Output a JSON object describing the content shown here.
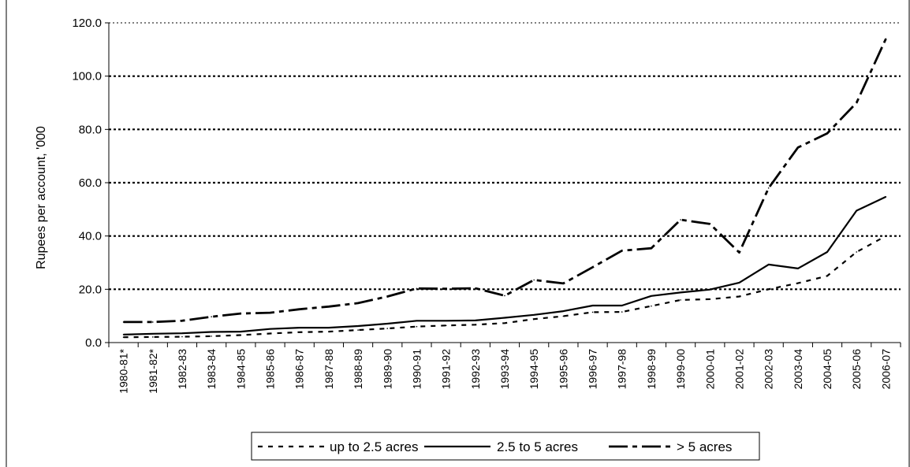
{
  "chart_data": {
    "type": "line",
    "title": "",
    "xlabel": "",
    "ylabel": "Rupees per account, '000",
    "ylim": [
      0,
      120
    ],
    "yticks": [
      "0.0",
      "20.0",
      "40.0",
      "60.0",
      "80.0",
      "100.0",
      "120.0"
    ],
    "grid": "horizontal dotted",
    "legend_position": "bottom",
    "categories": [
      "1980-81*",
      "1981-82*",
      "1982-83",
      "1983-84",
      "1984-85",
      "1985-86",
      "1986-87",
      "1987-88",
      "1988-89",
      "1989-90",
      "1990-91",
      "1991-92",
      "1992-93",
      "1993-94",
      "1994-95",
      "1995-96",
      "1996-97",
      "1997-98",
      "1998-99",
      "1999-00",
      "2000-01",
      "2001-02",
      "2002-03",
      "2003-04",
      "2004-05",
      "2005-06",
      "2006-07"
    ],
    "series": [
      {
        "name": "up to 2.5 acres",
        "dash": "short",
        "values": [
          2.0,
          2.1,
          2.2,
          2.4,
          2.8,
          3.4,
          3.9,
          4.1,
          4.7,
          5.3,
          6.0,
          6.4,
          6.7,
          7.3,
          8.8,
          9.9,
          11.4,
          11.5,
          13.7,
          16.0,
          16.3,
          17.3,
          20.0,
          22.3,
          25.0,
          34.0,
          40.0
        ]
      },
      {
        "name": "2.5 to 5 acres",
        "dash": "solid",
        "values": [
          3.0,
          3.3,
          3.5,
          4.0,
          4.1,
          5.1,
          5.6,
          5.6,
          6.2,
          7.1,
          8.2,
          8.2,
          8.3,
          9.3,
          10.4,
          11.8,
          13.9,
          13.9,
          17.5,
          18.8,
          19.9,
          22.5,
          29.3,
          27.8,
          34.0,
          49.5,
          54.7
        ]
      },
      {
        "name": "> 5 acres",
        "dash": "long",
        "values": [
          7.7,
          7.7,
          8.2,
          9.7,
          10.9,
          11.2,
          12.5,
          13.5,
          14.8,
          17.3,
          20.3,
          20.2,
          20.4,
          17.6,
          23.5,
          22.2,
          28.3,
          34.5,
          35.4,
          46.1,
          44.5,
          33.8,
          58.0,
          73.2,
          78.5,
          90.0,
          114.0
        ]
      }
    ]
  }
}
